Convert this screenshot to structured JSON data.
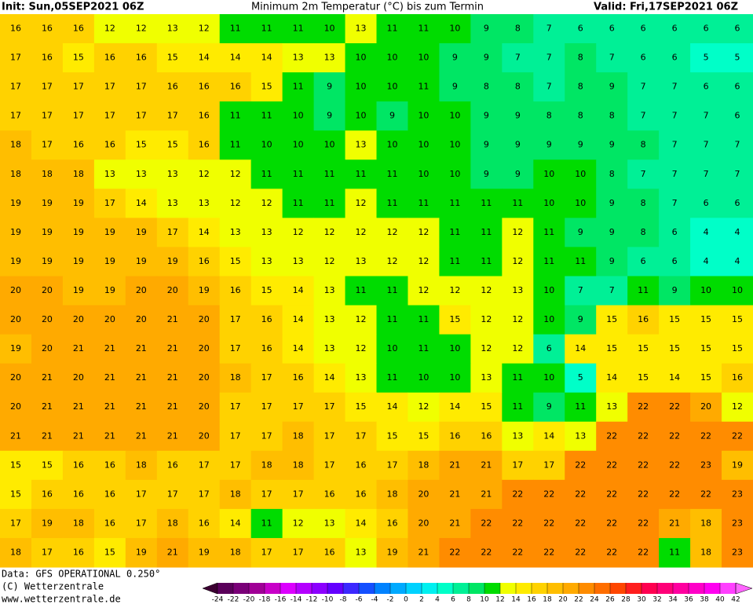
{
  "header": {
    "init": "Init: Sun,05SEP2021 06Z",
    "title": "Minimum 2m Temperatur (°C) bis zum Termin",
    "valid": "Valid: Fri,17SEP2021 06Z"
  },
  "grid": {
    "rows": [
      [
        16,
        16,
        16,
        12,
        12,
        13,
        12,
        11,
        11,
        11,
        10,
        13,
        11,
        11,
        10,
        9,
        8,
        7,
        6,
        6,
        6,
        6,
        6,
        6
      ],
      [
        17,
        16,
        15,
        16,
        16,
        15,
        14,
        14,
        14,
        13,
        13,
        10,
        10,
        10,
        9,
        9,
        7,
        7,
        8,
        7,
        6,
        6,
        5,
        5
      ],
      [
        17,
        17,
        17,
        17,
        17,
        16,
        16,
        16,
        15,
        11,
        9,
        10,
        10,
        11,
        9,
        8,
        8,
        7,
        8,
        9,
        7,
        7,
        6,
        6
      ],
      [
        17,
        17,
        17,
        17,
        17,
        17,
        16,
        11,
        11,
        10,
        9,
        10,
        9,
        10,
        10,
        9,
        9,
        8,
        8,
        8,
        7,
        7,
        7,
        6
      ],
      [
        18,
        17,
        16,
        16,
        15,
        15,
        16,
        11,
        10,
        10,
        10,
        13,
        10,
        10,
        10,
        9,
        9,
        9,
        9,
        9,
        8,
        7,
        7,
        7
      ],
      [
        18,
        18,
        18,
        13,
        13,
        13,
        12,
        12,
        11,
        11,
        11,
        11,
        11,
        10,
        10,
        9,
        9,
        10,
        10,
        8,
        7,
        7,
        7,
        7
      ],
      [
        19,
        19,
        19,
        17,
        14,
        13,
        13,
        12,
        12,
        11,
        11,
        12,
        11,
        11,
        11,
        11,
        11,
        10,
        10,
        9,
        8,
        7,
        6,
        6
      ],
      [
        19,
        19,
        19,
        19,
        19,
        17,
        14,
        13,
        13,
        12,
        12,
        12,
        12,
        12,
        11,
        11,
        12,
        11,
        9,
        9,
        8,
        6,
        4,
        4
      ],
      [
        19,
        19,
        19,
        19,
        19,
        19,
        16,
        15,
        13,
        13,
        12,
        13,
        12,
        12,
        11,
        11,
        12,
        11,
        11,
        9,
        6,
        6,
        4,
        4
      ],
      [
        20,
        20,
        19,
        19,
        20,
        20,
        19,
        16,
        15,
        14,
        13,
        11,
        11,
        12,
        12,
        12,
        13,
        10,
        7,
        7,
        11,
        9,
        10,
        10
      ],
      [
        20,
        20,
        20,
        20,
        20,
        21,
        20,
        17,
        16,
        14,
        13,
        12,
        11,
        11,
        15,
        12,
        12,
        10,
        9,
        15,
        16,
        15,
        15,
        15
      ],
      [
        19,
        20,
        21,
        21,
        21,
        21,
        20,
        17,
        16,
        14,
        13,
        12,
        10,
        11,
        10,
        12,
        12,
        6,
        14,
        15,
        15,
        15,
        15,
        15
      ],
      [
        20,
        21,
        20,
        21,
        21,
        21,
        20,
        18,
        17,
        16,
        14,
        13,
        11,
        10,
        10,
        13,
        11,
        10,
        5,
        14,
        15,
        14,
        15,
        16
      ],
      [
        20,
        21,
        21,
        21,
        21,
        21,
        20,
        17,
        17,
        17,
        17,
        15,
        14,
        12,
        14,
        15,
        11,
        9,
        11,
        13,
        22,
        22,
        20,
        12
      ],
      [
        21,
        21,
        21,
        21,
        21,
        21,
        20,
        17,
        17,
        18,
        17,
        17,
        15,
        15,
        16,
        16,
        13,
        14,
        13,
        22,
        22,
        22,
        22,
        22
      ],
      [
        15,
        15,
        16,
        16,
        18,
        16,
        17,
        17,
        18,
        18,
        17,
        16,
        17,
        18,
        21,
        21,
        17,
        17,
        22,
        22,
        22,
        22,
        23,
        19
      ],
      [
        15,
        16,
        16,
        16,
        17,
        17,
        17,
        18,
        17,
        17,
        16,
        16,
        18,
        20,
        21,
        21,
        22,
        22,
        22,
        22,
        22,
        22,
        22,
        23
      ],
      [
        17,
        19,
        18,
        16,
        17,
        18,
        16,
        14,
        11,
        12,
        13,
        14,
        16,
        20,
        21,
        22,
        22,
        22,
        22,
        22,
        22,
        21,
        18,
        23
      ],
      [
        18,
        17,
        16,
        15,
        19,
        21,
        19,
        18,
        17,
        17,
        16,
        13,
        19,
        21,
        22,
        22,
        22,
        22,
        22,
        22,
        22,
        11,
        18,
        23
      ]
    ]
  },
  "colorbar": {
    "ticks": [
      -24,
      -22,
      -20,
      -18,
      -16,
      -14,
      -12,
      -10,
      -8,
      -6,
      -4,
      -2,
      0,
      2,
      4,
      6,
      8,
      10,
      12,
      14,
      16,
      18,
      20,
      22,
      24,
      26,
      28,
      30,
      32,
      34,
      36,
      38,
      40,
      42
    ],
    "colors": [
      "#3c0032",
      "#5a005a",
      "#7a0078",
      "#a00096",
      "#c800c8",
      "#dc00ff",
      "#b400ff",
      "#8c00ff",
      "#6400ff",
      "#3c28ff",
      "#1450ff",
      "#0082ff",
      "#00aaff",
      "#00d2ff",
      "#00f0f0",
      "#00ffc8",
      "#00f096",
      "#00e664",
      "#00dc00",
      "#f0ff00",
      "#ffeb00",
      "#ffd200",
      "#ffbe00",
      "#ffaa00",
      "#ff8c00",
      "#ff6e00",
      "#ff4600",
      "#ff1e1e",
      "#ff0050",
      "#ff0078",
      "#ff00a0",
      "#ff00c8",
      "#ff00f0",
      "#ff40ff",
      "#ff64ff"
    ]
  },
  "footer": {
    "data": "Data: GFS OPERATIONAL 0.250°",
    "copyright": "(C) Wetterzentrale",
    "url": "www.wetterzentrale.de"
  }
}
